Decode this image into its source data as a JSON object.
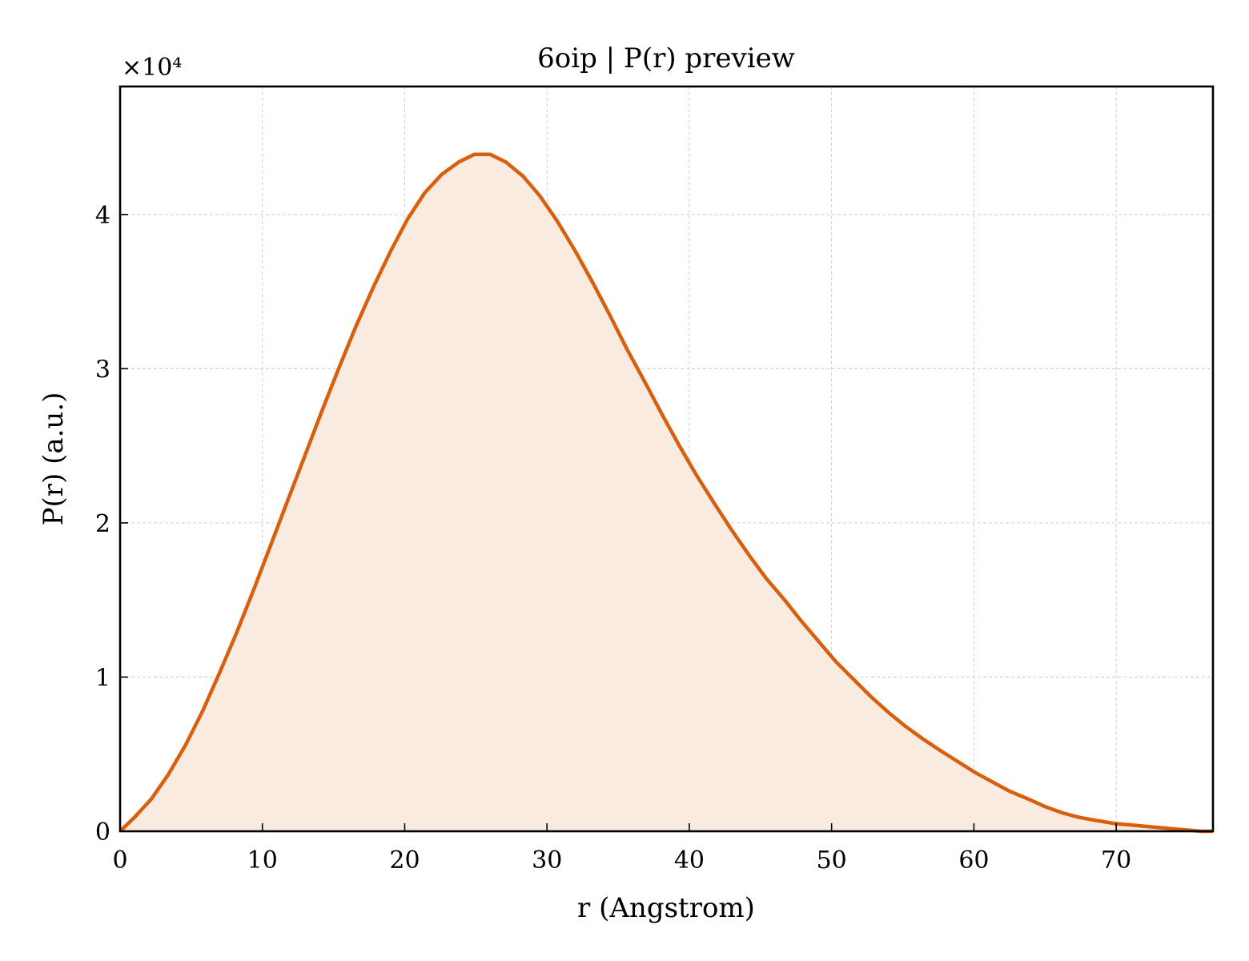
{
  "chart_data": {
    "type": "area",
    "title": "6oip | P(r) preview",
    "xlabel": "r (Angstrom)",
    "ylabel": "P(r) (a.u.)",
    "y_offset_label": "×10⁴",
    "xlim": [
      0,
      76.8
    ],
    "ylim": [
      0,
      4.83
    ],
    "xticks": [
      0,
      10,
      20,
      30,
      40,
      50,
      60,
      70
    ],
    "yticks": [
      0,
      1,
      2,
      3,
      4
    ],
    "grid": true,
    "line_color": "#d95f0e",
    "fill_color": "#f9ebe0",
    "series": [
      {
        "x": [
          0,
          1,
          2.2,
          3.4,
          4.6,
          5.8,
          7,
          8.2,
          9.4,
          10.6,
          11.8,
          13,
          14.2,
          15.4,
          16.6,
          17.8,
          19,
          20.2,
          21.4,
          22.6,
          23.8,
          24.9,
          26,
          27.1,
          28.3,
          29.5,
          30.7,
          32,
          33.2,
          34.4,
          35.6,
          36.9,
          38.1,
          39.3,
          40.5,
          41.8,
          43,
          44.2,
          45.4,
          46.7,
          47.9,
          49.1,
          50.3,
          51.6,
          52.8,
          54,
          55.2,
          56.4,
          57.7,
          58.9,
          60.1,
          61.3,
          62.5,
          63.8,
          65,
          66.2,
          67.4,
          68.6,
          69.9,
          71.1,
          72.3,
          73.5,
          74.7,
          76,
          76.8
        ],
        "values": [
          0,
          0.09,
          0.21,
          0.37,
          0.56,
          0.78,
          1.03,
          1.29,
          1.57,
          1.86,
          2.15,
          2.44,
          2.73,
          3.01,
          3.28,
          3.53,
          3.76,
          3.97,
          4.14,
          4.26,
          4.34,
          4.39,
          4.39,
          4.34,
          4.25,
          4.12,
          3.96,
          3.76,
          3.56,
          3.35,
          3.13,
          2.91,
          2.7,
          2.5,
          2.31,
          2.12,
          1.95,
          1.79,
          1.64,
          1.5,
          1.36,
          1.23,
          1.1,
          0.98,
          0.87,
          0.77,
          0.68,
          0.6,
          0.52,
          0.45,
          0.38,
          0.32,
          0.26,
          0.21,
          0.16,
          0.12,
          0.09,
          0.07,
          0.05,
          0.04,
          0.03,
          0.02,
          0.01,
          0.0,
          -0.03
        ]
      }
    ]
  }
}
